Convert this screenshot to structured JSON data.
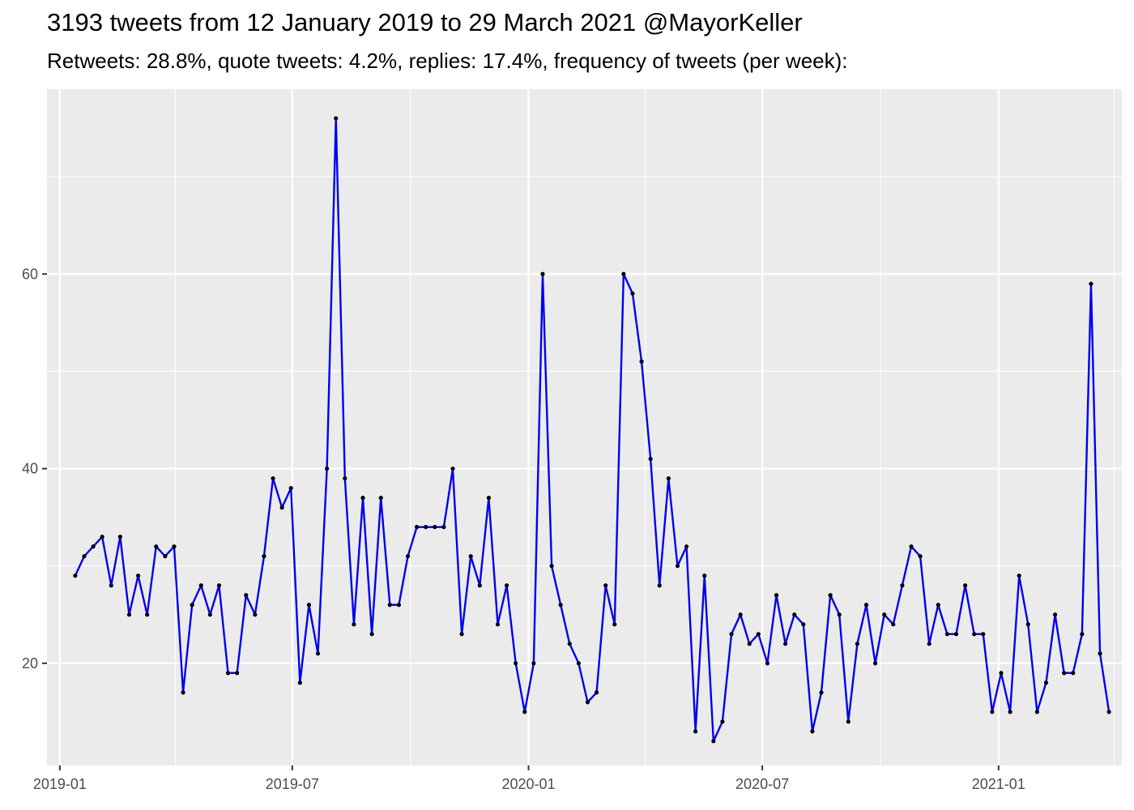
{
  "chart_data": {
    "type": "line",
    "title": "3193 tweets from 12 January 2019 to 29 March 2021 @MayorKeller",
    "subtitle": "Retweets: 28.8%, quote tweets: 4.2%, replies: 17.4%, frequency of tweets (per week):",
    "xlabel": "",
    "ylabel": "",
    "x_start": "2019-01-13",
    "x_step_days": 7,
    "xlim": [
      "2018-12-22",
      "2021-04-07"
    ],
    "ylim": [
      9.5,
      79
    ],
    "x_ticks": [
      {
        "date": "2019-01-01",
        "label": "2019-01"
      },
      {
        "date": "2019-07-01",
        "label": "2019-07"
      },
      {
        "date": "2020-01-01",
        "label": "2020-01"
      },
      {
        "date": "2020-07-01",
        "label": "2020-07"
      },
      {
        "date": "2021-01-01",
        "label": "2021-01"
      }
    ],
    "x_minor_ticks": [
      "2019-04-01",
      "2019-10-01",
      "2020-04-01",
      "2020-10-01",
      "2021-04-01"
    ],
    "y_ticks": [
      20,
      40,
      60
    ],
    "y_minor_ticks": [
      30,
      50,
      70
    ],
    "grid": true,
    "series": [
      {
        "line_color": "#0000ee",
        "point_color": "#000000",
        "values": [
          29,
          31,
          32,
          33,
          28,
          33,
          25,
          29,
          25,
          32,
          31,
          32,
          17,
          26,
          28,
          25,
          28,
          19,
          19,
          27,
          25,
          31,
          39,
          36,
          38,
          18,
          26,
          21,
          40,
          76,
          39,
          24,
          37,
          23,
          37,
          26,
          26,
          31,
          34,
          34,
          34,
          34,
          40,
          23,
          31,
          28,
          37,
          24,
          28,
          20,
          15,
          20,
          60,
          30,
          26,
          22,
          20,
          16,
          17,
          28,
          24,
          60,
          58,
          51,
          41,
          28,
          39,
          30,
          32,
          13,
          29,
          12,
          14,
          23,
          25,
          22,
          23,
          20,
          27,
          22,
          25,
          24,
          13,
          17,
          27,
          25,
          14,
          22,
          26,
          20,
          25,
          24,
          28,
          32,
          31,
          22,
          26,
          23,
          23,
          28,
          23,
          23,
          15,
          19,
          15,
          29,
          24,
          15,
          18,
          25,
          19,
          19,
          23,
          59,
          21,
          15
        ]
      }
    ]
  }
}
